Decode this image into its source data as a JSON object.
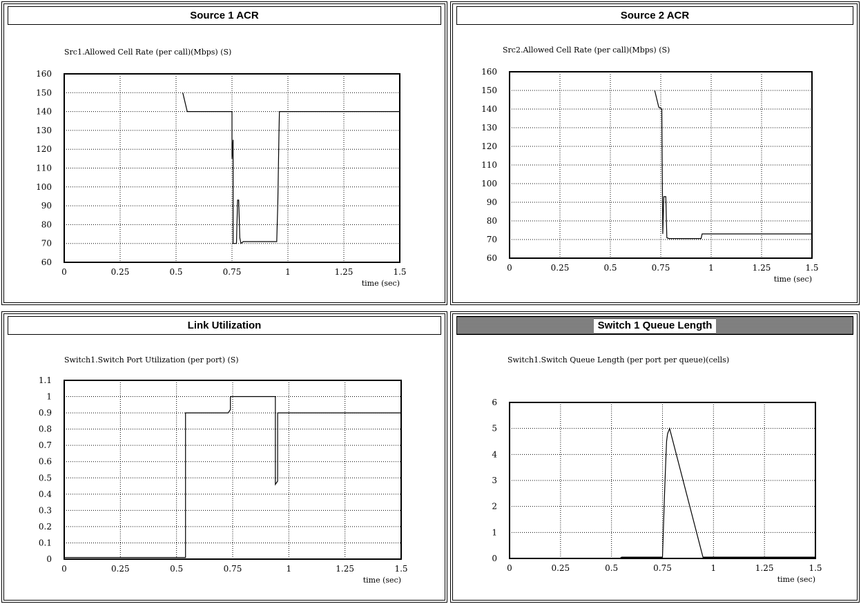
{
  "panels": [
    {
      "window_title": "Source 1 ACR",
      "active": false
    },
    {
      "window_title": "Source 2 ACR",
      "active": false
    },
    {
      "window_title": "Link Utilization",
      "active": false
    },
    {
      "window_title": "Switch 1 Queue Length",
      "active": true
    }
  ],
  "chart_data": [
    {
      "type": "line",
      "title": "Src1.Allowed Cell Rate (per call)(Mbps) (S)",
      "xlabel": "time (sec)",
      "ylabel": "",
      "xlim": [
        0,
        1.5
      ],
      "ylim": [
        60,
        160
      ],
      "xticks": [
        0,
        0.25,
        0.5,
        0.75,
        1,
        1.25,
        1.5
      ],
      "xtick_labels": [
        "0",
        "0.25",
        "0.5",
        "0.75",
        "1",
        "1.25",
        "1.5"
      ],
      "yticks": [
        60,
        70,
        80,
        90,
        100,
        110,
        120,
        130,
        140,
        150,
        160
      ],
      "ytick_labels": [
        "60",
        "70",
        "80",
        "90",
        "100",
        "110",
        "120",
        "130",
        "140",
        "150",
        "160"
      ],
      "grid": true,
      "series": [
        {
          "points": [
            [
              0.53,
              150
            ],
            [
              0.55,
              140
            ],
            [
              0.75,
              140
            ],
            [
              0.75,
              115
            ],
            [
              0.755,
              125
            ],
            [
              0.755,
              70
            ],
            [
              0.77,
              70
            ],
            [
              0.775,
              93
            ],
            [
              0.78,
              93
            ],
            [
              0.785,
              73
            ],
            [
              0.79,
              70
            ],
            [
              0.8,
              71
            ],
            [
              0.95,
              71
            ],
            [
              0.955,
              92
            ],
            [
              0.96,
              128
            ],
            [
              0.962,
              140
            ],
            [
              1.5,
              140
            ]
          ]
        }
      ]
    },
    {
      "type": "line",
      "title": "Src2.Allowed Cell Rate (per call)(Mbps) (S)",
      "xlabel": "time (sec)",
      "ylabel": "",
      "xlim": [
        0,
        1.5
      ],
      "ylim": [
        60,
        160
      ],
      "xticks": [
        0,
        0.25,
        0.5,
        0.75,
        1,
        1.25,
        1.5
      ],
      "xtick_labels": [
        "0",
        "0.25",
        "0.5",
        "0.75",
        "1",
        "1.25",
        "1.5"
      ],
      "yticks": [
        60,
        70,
        80,
        90,
        100,
        110,
        120,
        130,
        140,
        150,
        160
      ],
      "ytick_labels": [
        "60",
        "70",
        "80",
        "90",
        "100",
        "110",
        "120",
        "130",
        "140",
        "150",
        "160"
      ],
      "grid": true,
      "series": [
        {
          "points": [
            [
              0.72,
              150
            ],
            [
              0.74,
              141
            ],
            [
              0.755,
              140
            ],
            [
              0.76,
              73
            ],
            [
              0.765,
              93
            ],
            [
              0.775,
              93
            ],
            [
              0.78,
              71
            ],
            [
              0.79,
              70.5
            ],
            [
              0.95,
              70.5
            ],
            [
              0.955,
              73
            ],
            [
              1.5,
              73
            ]
          ]
        }
      ]
    },
    {
      "type": "line",
      "title": "Switch1.Switch Port Utilization (per port) (S)",
      "xlabel": "time (sec)",
      "ylabel": "",
      "xlim": [
        0,
        1.5
      ],
      "ylim": [
        0,
        1.1
      ],
      "xticks": [
        0,
        0.25,
        0.5,
        0.75,
        1,
        1.25,
        1.5
      ],
      "xtick_labels": [
        "0",
        "0.25",
        "0.5",
        "0.75",
        "1",
        "1.25",
        "1.5"
      ],
      "yticks": [
        0,
        0.1,
        0.2,
        0.3,
        0.4,
        0.5,
        0.6,
        0.7,
        0.8,
        0.9,
        1,
        1.1
      ],
      "ytick_labels": [
        "0",
        "0.1",
        "0.2",
        "0.3",
        "0.4",
        "0.5",
        "0.6",
        "0.7",
        "0.8",
        "0.9",
        "1",
        "1.1"
      ],
      "grid": true,
      "series": [
        {
          "points": [
            [
              0,
              0.01
            ],
            [
              0.54,
              0.01
            ],
            [
              0.54,
              0.9
            ],
            [
              0.73,
              0.9
            ],
            [
              0.74,
              0.92
            ],
            [
              0.74,
              1.0
            ],
            [
              0.94,
              1.0
            ],
            [
              0.94,
              0.46
            ],
            [
              0.95,
              0.48
            ],
            [
              0.95,
              0.9
            ],
            [
              1.5,
              0.9
            ]
          ]
        }
      ]
    },
    {
      "type": "line",
      "title": "Switch1.Switch Queue Length (per port per queue)(cells)",
      "xlabel": "time (sec)",
      "ylabel": "",
      "xlim": [
        0,
        1.5
      ],
      "ylim": [
        0,
        6
      ],
      "xticks": [
        0,
        0.25,
        0.5,
        0.75,
        1,
        1.25,
        1.5
      ],
      "xtick_labels": [
        "0",
        "0.25",
        "0.5",
        "0.75",
        "1",
        "1.25",
        "1.5"
      ],
      "yticks": [
        0,
        1,
        2,
        3,
        4,
        5,
        6
      ],
      "ytick_labels": [
        "0",
        "1",
        "2",
        "3",
        "4",
        "5",
        "6"
      ],
      "grid": true,
      "series": [
        {
          "points": [
            [
              0.5,
              0
            ],
            [
              0.54,
              0
            ],
            [
              0.55,
              0.05
            ],
            [
              0.75,
              0.05
            ],
            [
              0.76,
              2.5
            ],
            [
              0.765,
              3.5
            ],
            [
              0.77,
              4.5
            ],
            [
              0.775,
              4.8
            ],
            [
              0.78,
              4.9
            ],
            [
              0.785,
              5
            ],
            [
              0.95,
              0
            ],
            [
              1.5,
              0
            ]
          ]
        },
        {
          "points": [
            [
              0.55,
              0.02
            ],
            [
              0.75,
              0.02
            ]
          ]
        },
        {
          "points": [
            [
              0.95,
              0.04
            ],
            [
              1.5,
              0.04
            ]
          ]
        }
      ]
    }
  ]
}
